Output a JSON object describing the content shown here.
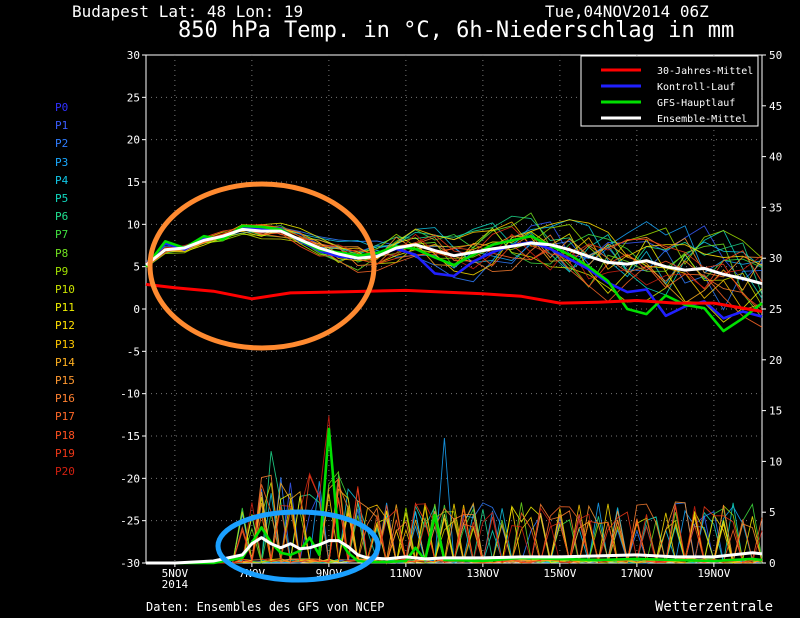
{
  "header": {
    "location": "Budapest   Lat: 48 Lon: 19",
    "datetime": "Tue,04NOV2014 06Z",
    "title": "850 hPa Temp. in °C, 6h-Niederschlag in mm",
    "source": "Daten: Ensembles des GFS von NCEP",
    "brand": "Wetterzentrale"
  },
  "members": [
    {
      "name": "P0",
      "color": "#3030ff"
    },
    {
      "name": "P1",
      "color": "#3a5cff"
    },
    {
      "name": "P2",
      "color": "#2f7dff"
    },
    {
      "name": "P3",
      "color": "#1aa8ff"
    },
    {
      "name": "P4",
      "color": "#10c8e8"
    },
    {
      "name": "P5",
      "color": "#10d8c0"
    },
    {
      "name": "P6",
      "color": "#20e090"
    },
    {
      "name": "P7",
      "color": "#40e040"
    },
    {
      "name": "P8",
      "color": "#70e020"
    },
    {
      "name": "P9",
      "color": "#a0e000"
    },
    {
      "name": "P10",
      "color": "#c8e000"
    },
    {
      "name": "P11",
      "color": "#f0f000"
    },
    {
      "name": "P12",
      "color": "#ffe000"
    },
    {
      "name": "P13",
      "color": "#ffc800"
    },
    {
      "name": "P14",
      "color": "#ffb020"
    },
    {
      "name": "P15",
      "color": "#ff9830"
    },
    {
      "name": "P16",
      "color": "#ff8030"
    },
    {
      "name": "P17",
      "color": "#ff6828"
    },
    {
      "name": "P18",
      "color": "#ff5020"
    },
    {
      "name": "P19",
      "color": "#f03818"
    },
    {
      "name": "P20",
      "color": "#d02010"
    }
  ],
  "chart_data": {
    "type": "line",
    "title": "850 hPa Temp. in °C, 6h-Niederschlag in mm",
    "x_ticks": [
      "5NOV\n2014",
      "7NOV",
      "9NOV",
      "11NOV",
      "13NOV",
      "15NOV",
      "17NOV",
      "19NOV"
    ],
    "x_range_days": [
      4.25,
      20.25
    ],
    "y_left": {
      "label": "",
      "min": -30,
      "max": 30,
      "ticks": [
        30,
        25,
        20,
        15,
        10,
        5,
        0,
        -5,
        -10,
        -15,
        -20,
        -25,
        -30
      ]
    },
    "y_right": {
      "label": "",
      "min": 0,
      "max": 50,
      "ticks": [
        50,
        45,
        40,
        35,
        30,
        25,
        20,
        15,
        10,
        5,
        0
      ]
    },
    "grid": true,
    "legend": {
      "position": "top-right",
      "items": [
        {
          "label": "30-Jahres-Mittel",
          "color": "#ff0000"
        },
        {
          "label": "Kontroll-Lauf",
          "color": "#2020ff"
        },
        {
          "label": "GFS-Hauptlauf",
          "color": "#00e000"
        },
        {
          "label": "Ensemble-Mittel",
          "color": "#ffffff"
        }
      ]
    },
    "series": [
      {
        "name": "30-Jahres-Mittel",
        "axis": "temp",
        "x": [
          4.25,
          5,
          6,
          7,
          8,
          9,
          10,
          11,
          12,
          13,
          14,
          15,
          16,
          17,
          18,
          19,
          20.25
        ],
        "values": [
          2.9,
          2.5,
          2.1,
          1.2,
          1.9,
          2.0,
          2.1,
          2.2,
          2.0,
          1.8,
          1.5,
          0.7,
          0.8,
          1.0,
          0.7,
          0.7,
          -0.3
        ]
      },
      {
        "name": "Ensemble-Mittel",
        "axis": "temp",
        "x": [
          4.25,
          4.75,
          5.25,
          5.75,
          6.25,
          6.75,
          7.25,
          7.75,
          8.25,
          8.75,
          9.25,
          9.75,
          10.25,
          10.75,
          11.25,
          11.75,
          12.25,
          12.75,
          13.25,
          13.75,
          14.25,
          14.75,
          15.25,
          15.75,
          16.25,
          16.75,
          17.25,
          17.75,
          18.25,
          18.75,
          19.25,
          19.75,
          20.25
        ],
        "values": [
          5.2,
          7.0,
          7.2,
          8.1,
          8.6,
          9.4,
          9.2,
          9.2,
          8.2,
          7.2,
          6.5,
          6.0,
          6.2,
          7.2,
          7.6,
          6.9,
          6.3,
          6.7,
          7.1,
          7.4,
          7.8,
          7.6,
          7.0,
          6.2,
          5.5,
          5.3,
          5.7,
          5.0,
          4.6,
          4.8,
          4.1,
          3.6,
          3.0
        ]
      },
      {
        "name": "GFS-Hauptlauf",
        "axis": "temp",
        "x": [
          4.25,
          4.75,
          5.25,
          5.75,
          6.25,
          6.75,
          7.25,
          7.75,
          8.25,
          8.75,
          9.25,
          9.75,
          10.25,
          10.75,
          11.25,
          11.75,
          12.25,
          12.75,
          13.25,
          13.75,
          14.25,
          14.75,
          15.25,
          15.75,
          16.25,
          16.75,
          17.25,
          17.75,
          18.25,
          18.75,
          19.25,
          19.75,
          20.25
        ],
        "values": [
          5.0,
          8.0,
          7.2,
          8.6,
          8.2,
          9.8,
          9.7,
          9.4,
          8.1,
          7.0,
          6.7,
          6.3,
          6.6,
          7.4,
          7.1,
          6.1,
          5.2,
          6.4,
          7.6,
          8.1,
          8.6,
          7.5,
          6.4,
          5.0,
          3.3,
          0.0,
          -0.6,
          1.6,
          0.5,
          0.1,
          -2.6,
          -1.1,
          0.7
        ]
      },
      {
        "name": "Kontroll-Lauf",
        "axis": "temp",
        "x": [
          4.25,
          4.75,
          5.25,
          5.75,
          6.25,
          6.75,
          7.25,
          7.75,
          8.25,
          8.75,
          9.25,
          9.75,
          10.25,
          10.75,
          11.25,
          11.75,
          12.25,
          12.75,
          13.25,
          13.75,
          14.25,
          14.75,
          15.25,
          15.75,
          16.25,
          16.75,
          17.25,
          17.75,
          18.25,
          18.75,
          19.25,
          19.75,
          20.25
        ],
        "values": [
          5.1,
          7.8,
          7.0,
          8.4,
          8.4,
          9.6,
          9.5,
          9.5,
          8.0,
          6.9,
          6.2,
          6.0,
          6.4,
          7.1,
          6.4,
          4.2,
          3.9,
          5.6,
          6.7,
          7.5,
          7.9,
          7.1,
          5.9,
          4.7,
          3.1,
          2.0,
          2.3,
          -0.8,
          0.3,
          0.9,
          -1.1,
          -0.3,
          -0.9
        ]
      },
      {
        "name": "Ensemble-Mittel",
        "axis": "precip",
        "x": [
          4.25,
          5,
          6,
          6.75,
          7,
          7.25,
          7.5,
          7.75,
          8,
          8.25,
          8.5,
          8.75,
          9,
          9.25,
          9.5,
          9.75,
          10,
          10.5,
          11,
          11.5,
          12,
          13,
          14,
          15,
          16,
          17,
          18,
          19,
          20,
          20.25
        ],
        "values": [
          0,
          0,
          0.2,
          0.8,
          1.9,
          2.5,
          1.9,
          1.5,
          1.9,
          1.4,
          1.5,
          1.8,
          2.2,
          2.2,
          1.6,
          0.8,
          0.5,
          0.4,
          0.6,
          0.4,
          0.5,
          0.5,
          0.6,
          0.6,
          0.7,
          0.8,
          0.6,
          0.6,
          1.0,
          0.9
        ]
      },
      {
        "name": "GFS-Hauptlauf",
        "axis": "precip",
        "x": [
          4.25,
          6,
          6.75,
          7,
          7.25,
          7.5,
          7.75,
          8,
          8.25,
          8.5,
          8.75,
          9,
          9.25,
          9.5,
          9.75,
          10,
          10.5,
          11,
          11.25,
          11.5,
          11.75,
          12,
          13,
          14,
          15,
          16,
          17,
          18,
          19,
          20,
          20.25
        ],
        "values": [
          0,
          0,
          0.5,
          2.0,
          3.5,
          2.0,
          1.0,
          0.8,
          1.2,
          2.5,
          0.8,
          13.2,
          2.5,
          1.0,
          0.2,
          0.1,
          0.1,
          0.2,
          1.5,
          0.3,
          4.7,
          0.3,
          0.2,
          0.5,
          0.4,
          0.3,
          0.4,
          0.3,
          0.2,
          0.4,
          0.3
        ]
      }
    ]
  }
}
